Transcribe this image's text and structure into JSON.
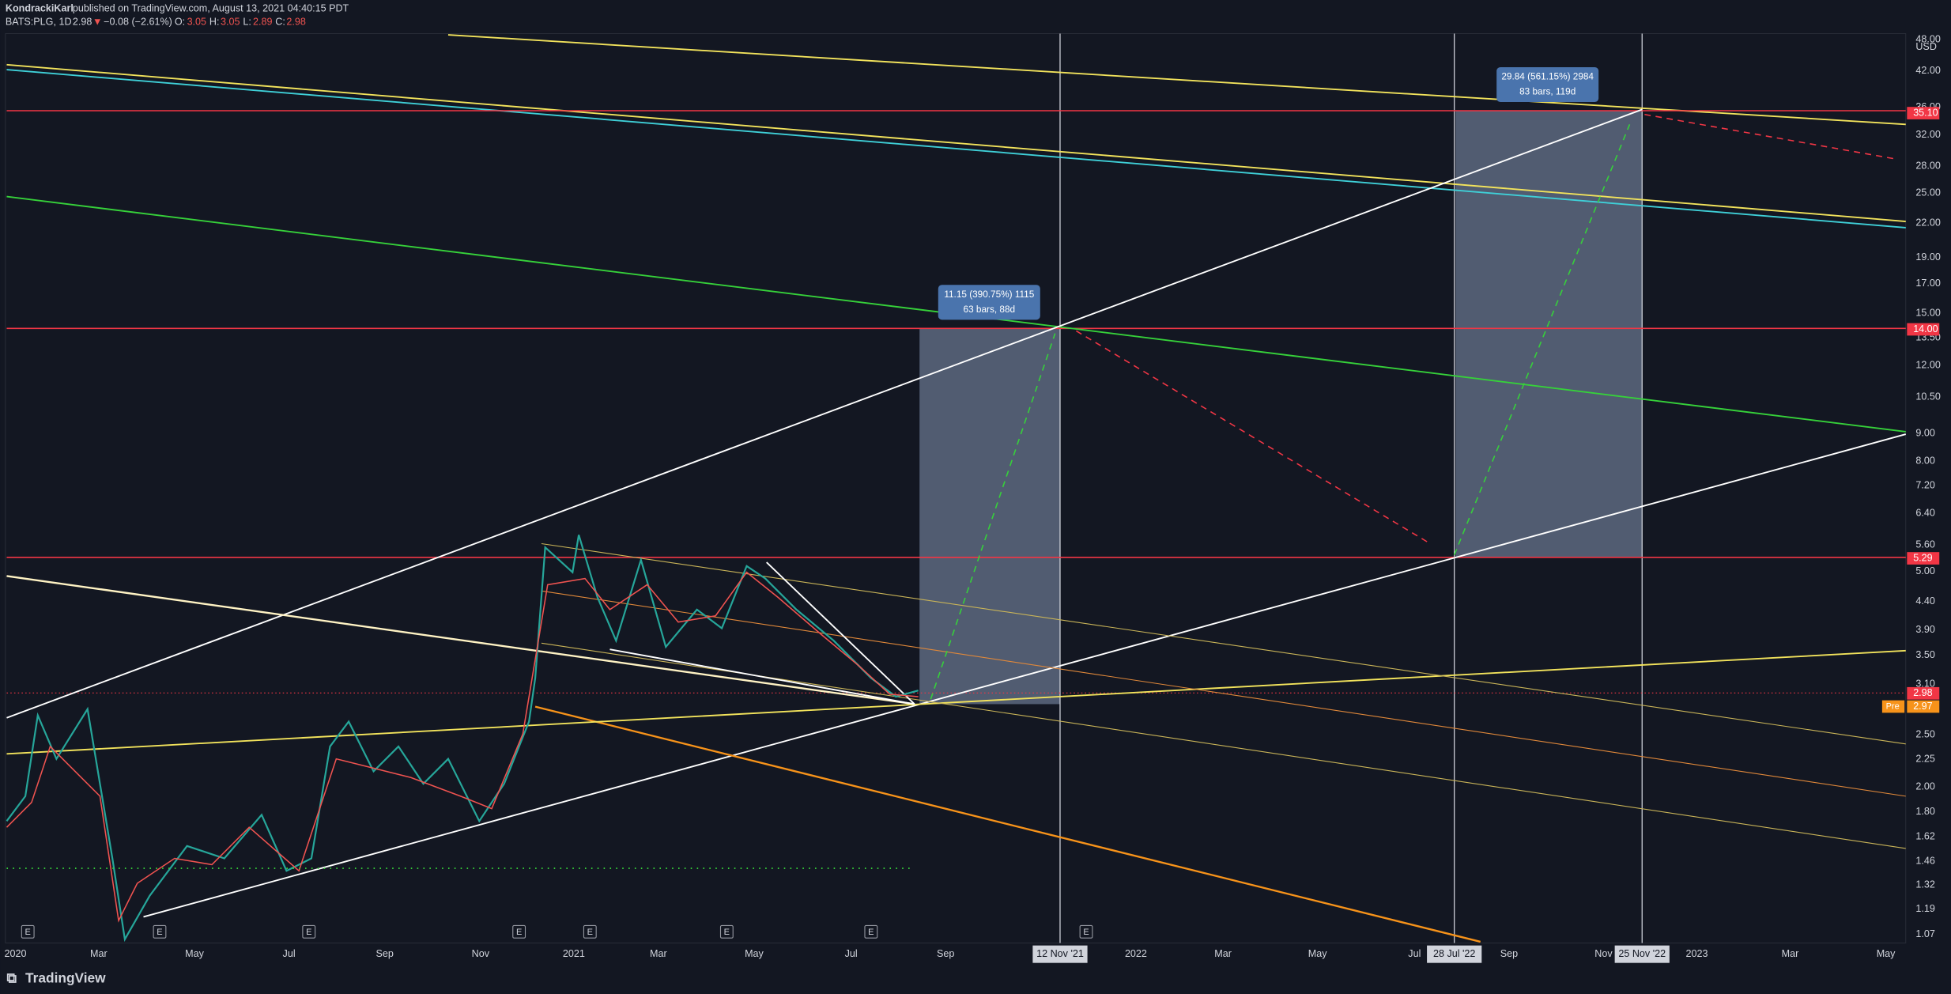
{
  "header": {
    "author": "KondrackiKarl",
    "published": "published on TradingView.com, August 13, 2021 04:40:15 PDT",
    "symbol": "BATS:PLG, 1D",
    "last": "2.98",
    "change": "−0.08 (−2.61%)",
    "o_label": "O:",
    "o": "3.05",
    "h_label": "H:",
    "h": "3.05",
    "l_label": "L:",
    "l": "2.89",
    "c_label": "C:",
    "c": "2.98"
  },
  "price_axis": {
    "currency": "USD",
    "labels": [
      "48.00",
      "42.00",
      "36.00",
      "32.00",
      "28.00",
      "25.00",
      "22.00",
      "19.00",
      "17.00",
      "15.00",
      "13.50",
      "12.00",
      "10.50",
      "9.00",
      "8.00",
      "7.20",
      "6.40",
      "5.60",
      "5.00",
      "4.40",
      "3.90",
      "3.50",
      "3.10",
      "2.50",
      "2.25",
      "2.00",
      "1.80",
      "1.62",
      "1.46",
      "1.32",
      "1.19",
      "1.07"
    ],
    "highlights": [
      {
        "label": "35.10",
        "kind": "level"
      },
      {
        "label": "14.00",
        "kind": "level"
      },
      {
        "label": "5.29",
        "kind": "level"
      },
      {
        "label": "2.98",
        "kind": "last"
      }
    ],
    "premarket": {
      "tag": "Pre",
      "label": "2.97"
    }
  },
  "time_axis": {
    "labels": [
      "2020",
      "Mar",
      "May",
      "Jul",
      "Sep",
      "Nov",
      "2021",
      "Mar",
      "May",
      "Jul",
      "Sep",
      "2022",
      "Mar",
      "May",
      "Jul",
      "Sep",
      "Nov",
      "2023",
      "Mar",
      "May"
    ],
    "highlights": [
      "12 Nov '21",
      "28 Jul '22",
      "25 Nov '22"
    ]
  },
  "earnings_markers": [
    "E",
    "E",
    "E",
    "E",
    "E",
    "E",
    "E",
    "E"
  ],
  "measures": [
    {
      "line1": "11.15 (390.75%) 1115",
      "line2": "63 bars, 88d"
    },
    {
      "line1": "29.84 (561.15%) 2984",
      "line2": "83 bars, 119d"
    }
  ],
  "footer": {
    "brand": "TradingView"
  }
}
